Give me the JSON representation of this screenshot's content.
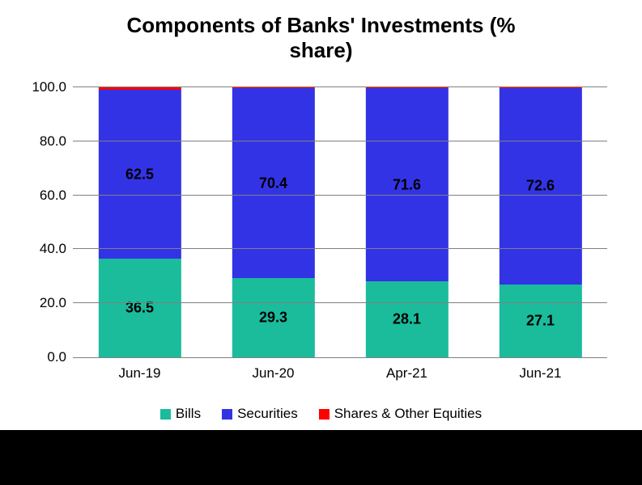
{
  "chart": {
    "type": "stacked-bar",
    "title_line1": "Components of Banks' Investments (%",
    "title_line2": "share)",
    "title_fontsize": 26,
    "background_color": "#ffffff",
    "ylim": [
      0,
      100
    ],
    "ytick_step": 20,
    "yticks": [
      "0.0",
      "20.0",
      "40.0",
      "60.0",
      "80.0",
      "100.0"
    ],
    "ytick_fontsize": 17,
    "grid_color": "#808080",
    "xtick_fontsize": 17,
    "categories": [
      "Jun-19",
      "Jun-20",
      "Apr-21",
      "Jun-21"
    ],
    "bar_width_pct": 62,
    "data_label_fontsize": 18,
    "series": [
      {
        "name": "Bills",
        "color": "#1abc9c",
        "label_color": "#000000",
        "values": [
          36.5,
          29.3,
          28.1,
          27.1
        ],
        "labels": [
          "36.5",
          "29.3",
          "28.1",
          "27.1"
        ]
      },
      {
        "name": "Securities",
        "color": "#3333e6",
        "label_color": "#000000",
        "values": [
          62.5,
          70.4,
          71.6,
          72.6
        ],
        "labels": [
          "62.5",
          "70.4",
          "71.6",
          "72.6"
        ]
      },
      {
        "name": "Shares & Other Equities",
        "color": "#ff0000",
        "label_color": "#000000",
        "values": [
          1.0,
          0.3,
          0.3,
          0.3
        ],
        "labels": [
          "",
          "",
          "",
          ""
        ]
      }
    ],
    "legend": {
      "fontsize": 17,
      "swatch_size": 13,
      "items": [
        "Bills",
        "Securities",
        "Shares & Other Equities"
      ]
    }
  },
  "bottom_band_color": "#000000"
}
